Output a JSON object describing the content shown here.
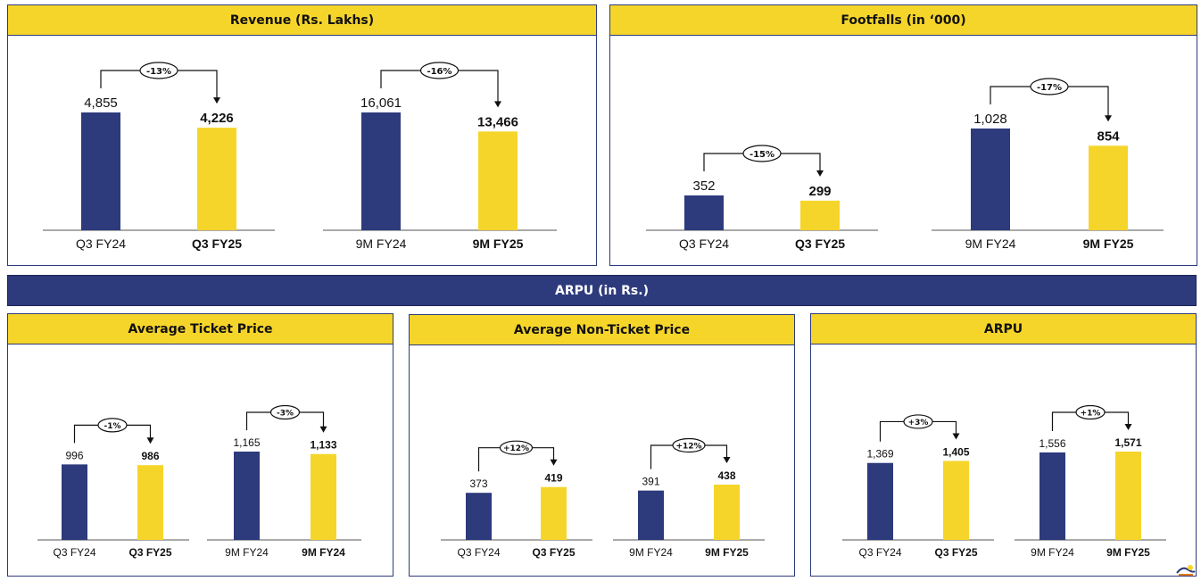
{
  "colors": {
    "navy": "#2d3a7c",
    "yellow": "#f6d52b"
  },
  "panels": {
    "revenue": {
      "title": "Revenue (Rs. Lakhs)"
    },
    "footfalls": {
      "title": "Footfalls (in ‘000)"
    },
    "arpu_banner": {
      "title": "ARPU (in Rs.)"
    },
    "atp": {
      "title": "Average Ticket Price"
    },
    "antp": {
      "title": "Average Non-Ticket Price"
    },
    "arpu": {
      "title": "ARPU"
    }
  },
  "chart_data": [
    {
      "id": "revenue_q3",
      "type": "bar",
      "panel": "Revenue (Rs. Lakhs)",
      "categories": [
        "Q3 FY24",
        "Q3 FY25"
      ],
      "values": [
        4855,
        4226
      ],
      "labels": [
        "4,855",
        "4,226"
      ],
      "change": "-13%"
    },
    {
      "id": "revenue_9m",
      "type": "bar",
      "panel": "Revenue (Rs. Lakhs)",
      "categories": [
        "9M FY24",
        "9M FY25"
      ],
      "values": [
        16061,
        13466
      ],
      "labels": [
        "16,061",
        "13,466"
      ],
      "change": "-16%"
    },
    {
      "id": "footfalls_q3",
      "type": "bar",
      "panel": "Footfalls (in ‘000)",
      "categories": [
        "Q3 FY24",
        "Q3 FY25"
      ],
      "values": [
        352,
        299
      ],
      "labels": [
        "352",
        "299"
      ],
      "change": "-15%"
    },
    {
      "id": "footfalls_9m",
      "type": "bar",
      "panel": "Footfalls (in ‘000)",
      "categories": [
        "9M FY24",
        "9M FY25"
      ],
      "values": [
        1028,
        854
      ],
      "labels": [
        "1,028",
        "854"
      ],
      "change": "-17%"
    },
    {
      "id": "atp_q3",
      "type": "bar",
      "panel": "Average Ticket Price",
      "categories": [
        "Q3 FY24",
        "Q3 FY25"
      ],
      "values": [
        996,
        986
      ],
      "labels": [
        "996",
        "986"
      ],
      "change": "-1%"
    },
    {
      "id": "atp_9m",
      "type": "bar",
      "panel": "Average Ticket Price",
      "categories": [
        "9M FY24",
        "9M FY24"
      ],
      "values": [
        1165,
        1133
      ],
      "labels": [
        "1,165",
        "1,133"
      ],
      "change": "-3%"
    },
    {
      "id": "antp_q3",
      "type": "bar",
      "panel": "Average Non-Ticket Price",
      "categories": [
        "Q3 FY24",
        "Q3 FY25"
      ],
      "values": [
        373,
        419
      ],
      "labels": [
        "373",
        "419"
      ],
      "change": "+12%"
    },
    {
      "id": "antp_9m",
      "type": "bar",
      "panel": "Average Non-Ticket Price",
      "categories": [
        "9M FY24",
        "9M FY25"
      ],
      "values": [
        391,
        438
      ],
      "labels": [
        "391",
        "438"
      ],
      "change": "+12%"
    },
    {
      "id": "arpu_q3",
      "type": "bar",
      "panel": "ARPU",
      "categories": [
        "Q3 FY24",
        "Q3 FY25"
      ],
      "values": [
        1369,
        1405
      ],
      "labels": [
        "1,369",
        "1,405"
      ],
      "change": "+3%"
    },
    {
      "id": "arpu_9m",
      "type": "bar",
      "panel": "ARPU",
      "categories": [
        "9M FY24",
        "9M FY25"
      ],
      "values": [
        1556,
        1571
      ],
      "labels": [
        "1,556",
        "1,571"
      ],
      "change": "+1%"
    }
  ]
}
